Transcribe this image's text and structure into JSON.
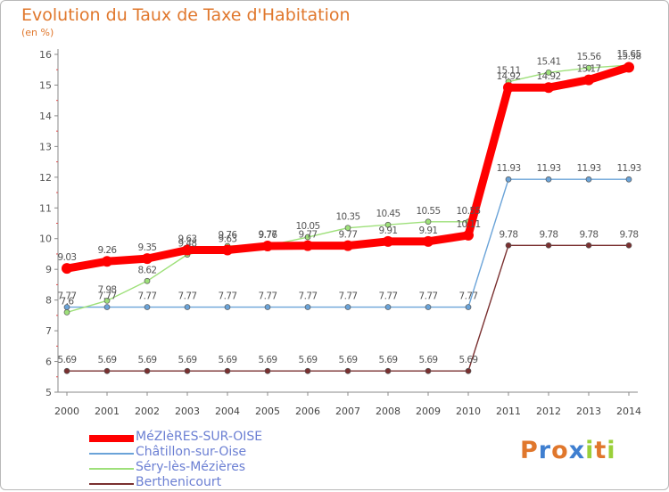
{
  "chart_data": {
    "type": "line",
    "title": "Evolution du Taux de Taxe d'Habitation",
    "unit_label": "(en %)",
    "x": [
      2000,
      2001,
      2002,
      2003,
      2004,
      2005,
      2006,
      2007,
      2008,
      2009,
      2010,
      2011,
      2012,
      2013,
      2014
    ],
    "ylim": [
      5,
      16
    ],
    "yticks": [
      5,
      6,
      7,
      8,
      9,
      10,
      11,
      12,
      13,
      14,
      15,
      16
    ],
    "grid": false,
    "legend_position": "bottom-left",
    "series": [
      {
        "name": "MéZIèRES-SUR-OISE",
        "color": "#ff0000",
        "values": [
          9.03,
          9.26,
          9.35,
          9.63,
          9.63,
          9.76,
          9.77,
          9.77,
          9.91,
          9.91,
          10.11,
          14.92,
          14.92,
          15.17,
          15.58
        ],
        "labels": [
          "9.03",
          "9.26",
          "9.35",
          "9.63",
          "9.63",
          "9.76",
          "9.77",
          "9.77",
          "9.91",
          "9.91",
          "10.11",
          "14.92",
          "14.92",
          "15.17",
          "15.58"
        ]
      },
      {
        "name": "Châtillon-sur-Oise",
        "color": "#6aa3d8",
        "values": [
          7.77,
          7.77,
          7.77,
          7.77,
          7.77,
          7.77,
          7.77,
          7.77,
          7.77,
          7.77,
          7.77,
          11.93,
          11.93,
          11.93,
          11.93
        ],
        "labels": [
          "7.77",
          "7.77",
          "7.77",
          "7.77",
          "7.77",
          "7.77",
          "7.77",
          "7.77",
          "7.77",
          "7.77",
          "7.77",
          "11.93",
          "11.93",
          "11.93",
          "11.93"
        ]
      },
      {
        "name": "Séry-lès-Mézières",
        "color": "#9ee07a",
        "values": [
          7.6,
          7.98,
          8.62,
          9.48,
          9.76,
          9.77,
          10.05,
          10.35,
          10.45,
          10.55,
          10.55,
          15.11,
          15.41,
          15.56,
          15.65
        ],
        "labels": [
          "7.6",
          "7.98",
          "8.62",
          "9.48",
          "9.76",
          "9.77",
          "10.05",
          "10.35",
          "10.45",
          "10.55",
          "10.55",
          "15.11",
          "15.41",
          "15.56",
          "15.65"
        ]
      },
      {
        "name": "Berthenicourt",
        "color": "#7a3030",
        "values": [
          5.69,
          5.69,
          5.69,
          5.69,
          5.69,
          5.69,
          5.69,
          5.69,
          5.69,
          5.69,
          5.69,
          9.78,
          9.78,
          9.78,
          9.78
        ],
        "labels": [
          "5.69",
          "5.69",
          "5.69",
          "5.69",
          "5.69",
          "5.69",
          "5.69",
          "5.69",
          "5.69",
          "5.69",
          "5.69",
          "9.78",
          "9.78",
          "9.78",
          "9.78"
        ]
      }
    ]
  },
  "brand": {
    "letters": [
      "P",
      "r",
      "o",
      "x",
      "i",
      "t",
      "i"
    ],
    "colors": [
      "#e0772c",
      "#3f7fd0",
      "#e0772c",
      "#3f7fd0",
      "#9ad03a",
      "#e0772c",
      "#9ad03a"
    ]
  }
}
